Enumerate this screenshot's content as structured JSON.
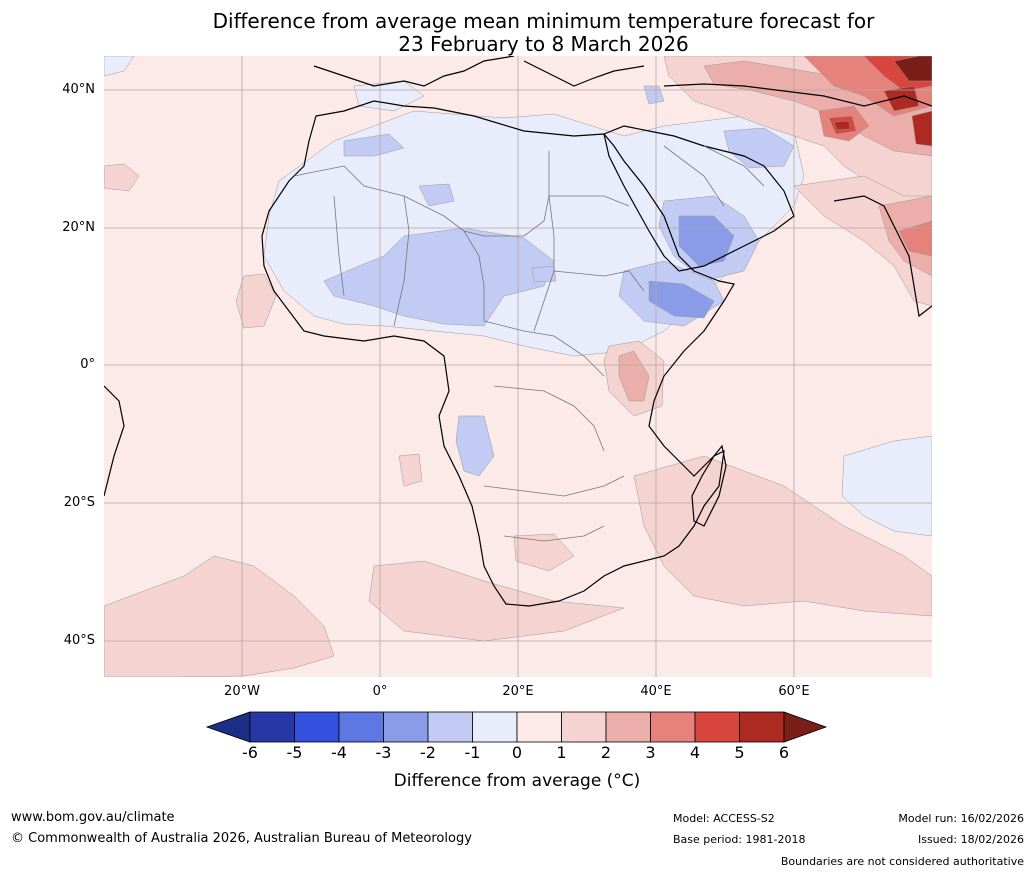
{
  "title": {
    "line1": "Difference from average mean minimum temperature forecast for",
    "line2": "23 February to 8 March 2026"
  },
  "map": {
    "lat_labels": [
      "40°N",
      "20°N",
      "0°",
      "20°S",
      "40°S"
    ],
    "lon_labels": [
      "20°W",
      "0°",
      "20°E",
      "40°E",
      "60°E"
    ]
  },
  "colorbar": {
    "ticks": [
      "-6",
      "-5",
      "-4",
      "-3",
      "-2",
      "-1",
      "0",
      "1",
      "2",
      "3",
      "4",
      "5",
      "6"
    ],
    "colors": [
      "#1c2e85",
      "#2738a6",
      "#3350de",
      "#5e78e3",
      "#8a9ce8",
      "#c2cbf3",
      "#e9ecfb",
      "#fbeae8",
      "#f4d3d0",
      "#ebaeaa",
      "#e5827c",
      "#d9463e",
      "#ad2a22",
      "#7a1e18"
    ],
    "label": "Difference from average (°C)"
  },
  "footer": {
    "website": "www.bom.gov.au/climate",
    "copyright": "© Commonwealth of Australia 2026, Australian Bureau of Meteorology",
    "model": "Model: ACCESS-S2",
    "base_period": "Base period: 1981-2018",
    "model_run": "Model run: 16/02/2026",
    "issued": "Issued: 18/02/2026",
    "disclaimer": "Boundaries are not considered authoritative"
  }
}
